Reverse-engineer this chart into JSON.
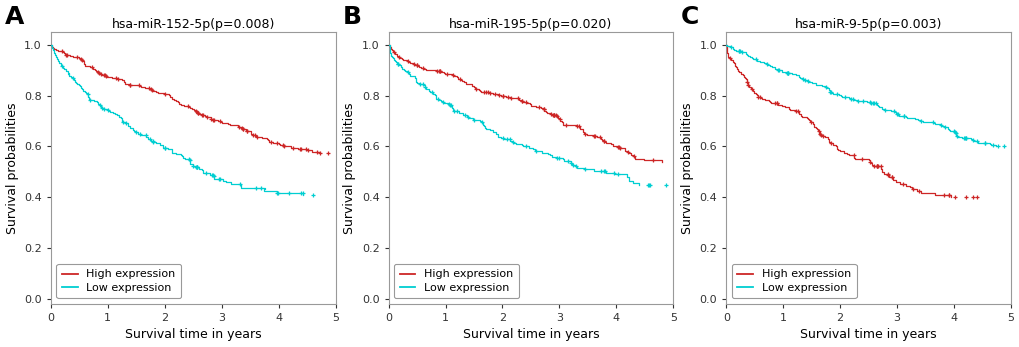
{
  "panels": [
    {
      "label": "A",
      "title": "hsa-miR-152-5p(p=0.008)",
      "high_color": "#CD2626",
      "low_color": "#00CED1",
      "high_label": "High expression",
      "low_label": "Low expression"
    },
    {
      "label": "B",
      "title": "hsa-miR-195-5p(p=0.020)",
      "high_color": "#CD2626",
      "low_color": "#00CED1",
      "high_label": "High expression",
      "low_label": "Low expression"
    },
    {
      "label": "C",
      "title": "hsa-miR-9-5p(p=0.003)",
      "high_color": "#CD2626",
      "low_color": "#00CED1",
      "high_label": "High expression",
      "low_label": "Low expression"
    }
  ],
  "xlabel": "Survival time in years",
  "ylabel": "Survival probabilities",
  "xlim": [
    0,
    5
  ],
  "ylim": [
    -0.02,
    1.05
  ],
  "yticks": [
    0.0,
    0.2,
    0.4,
    0.6,
    0.8,
    1.0
  ],
  "xticks": [
    0,
    1,
    2,
    3,
    4,
    5
  ],
  "bg_color": "#FFFFFF",
  "border_color": "#999999",
  "title_fontsize": 9,
  "tick_fontsize": 8,
  "axis_label_fontsize": 9,
  "legend_fontsize": 8,
  "panel_label_fontsize": 18
}
